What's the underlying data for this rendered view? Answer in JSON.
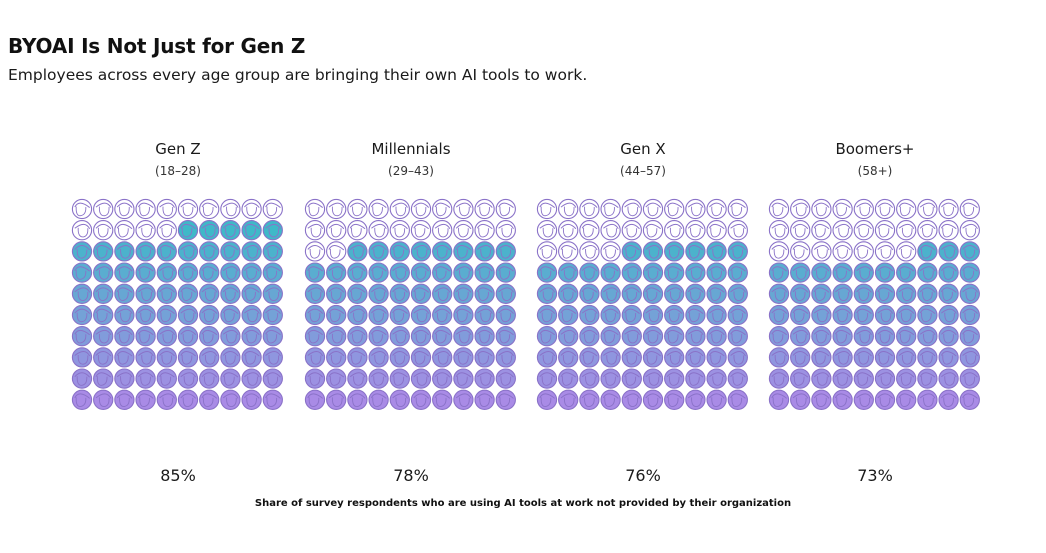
{
  "title": "BYOAI Is Not Just for Gen Z",
  "subtitle": "Employees across every age group are bringing their own AI tools to work.",
  "caption": "Share of survey respondents who are using AI tools at work not provided by their organization",
  "colors": {
    "outline": "#8a72c8",
    "fill_top": "#3fb8c8",
    "fill_bottom": "#a98be6"
  },
  "chart_data": {
    "type": "waffle",
    "grid": {
      "rows": 10,
      "cols": 10,
      "total_units": 100
    },
    "unit_icon": "face-icon",
    "groups": [
      {
        "name": "Gen Z",
        "age_range": "(18–28)",
        "value": 85,
        "label": "85%"
      },
      {
        "name": "Millennials",
        "age_range": "(29–43)",
        "value": 78,
        "label": "78%"
      },
      {
        "name": "Gen X",
        "age_range": "(44–57)",
        "value": 76,
        "label": "76%"
      },
      {
        "name": "Boomers+",
        "age_range": "(58+)",
        "value": 73,
        "label": "73%"
      }
    ]
  }
}
